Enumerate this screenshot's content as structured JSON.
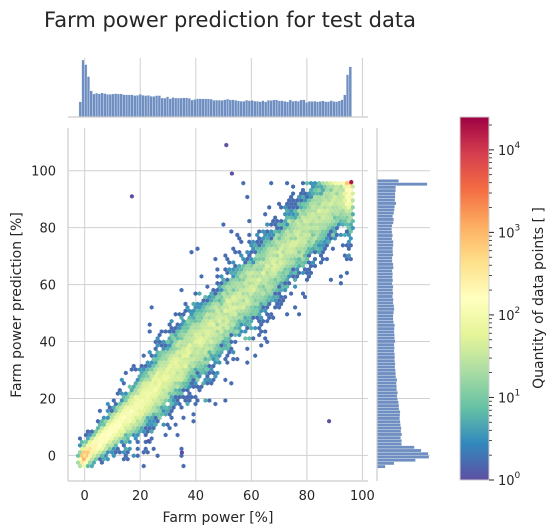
{
  "chart_data": {
    "type": "heatmap",
    "subtype": "hexbin joint plot with marginal histograms",
    "title": "Farm power prediction for test data",
    "xlabel": "Farm power [%]",
    "ylabel": "Farm power prediction [%]",
    "xlim": [
      -6,
      102
    ],
    "ylim": [
      -9,
      115
    ],
    "x_ticks": [
      0,
      20,
      40,
      60,
      80,
      100
    ],
    "y_ticks": [
      0,
      20,
      40,
      60,
      80,
      100
    ],
    "x_tick_labels": [
      "0",
      "20",
      "40",
      "60",
      "80",
      "100"
    ],
    "y_tick_labels": [
      "0",
      "20",
      "40",
      "60",
      "80",
      "100"
    ],
    "grid": true,
    "colorbar": {
      "label": "Quantity of data points [ ]",
      "scale": "log",
      "range": [
        1,
        25000
      ],
      "ticks": [
        1,
        10,
        100,
        1000,
        10000
      ],
      "tick_labels": [
        "10^0",
        "10^1",
        "10^2",
        "10^3",
        "10^4"
      ],
      "colormap": "Spectral_r"
    },
    "density_band": {
      "center_line": [
        [
          -2,
          -2
        ],
        [
          20,
          18
        ],
        [
          40,
          39
        ],
        [
          60,
          59
        ],
        [
          80,
          80
        ],
        [
          95,
          95
        ]
      ],
      "saturation_cap": 96,
      "hotspots": [
        [
          0,
          0
        ],
        [
          96,
          96
        ]
      ]
    },
    "outliers": [
      [
        51,
        109
      ],
      [
        17,
        91
      ],
      [
        53,
        99
      ],
      [
        88,
        12
      ],
      [
        35,
        1
      ],
      [
        23,
        5
      ]
    ],
    "marginal_x": {
      "description": "histogram of Farm power",
      "peaks": [
        [
          -1,
          1.0
        ],
        [
          96,
          0.9
        ]
      ],
      "baseline_level": 0.12
    },
    "marginal_y": {
      "description": "histogram of Farm power prediction",
      "peaks": [
        [
          0,
          1.0
        ],
        [
          96,
          0.95
        ]
      ],
      "baseline_level": 0.08
    },
    "colors": {
      "marginal_bars": "#6f8fc2",
      "grid": "#d0d0d0",
      "spine": "#cccccc",
      "text": "#262626"
    }
  }
}
